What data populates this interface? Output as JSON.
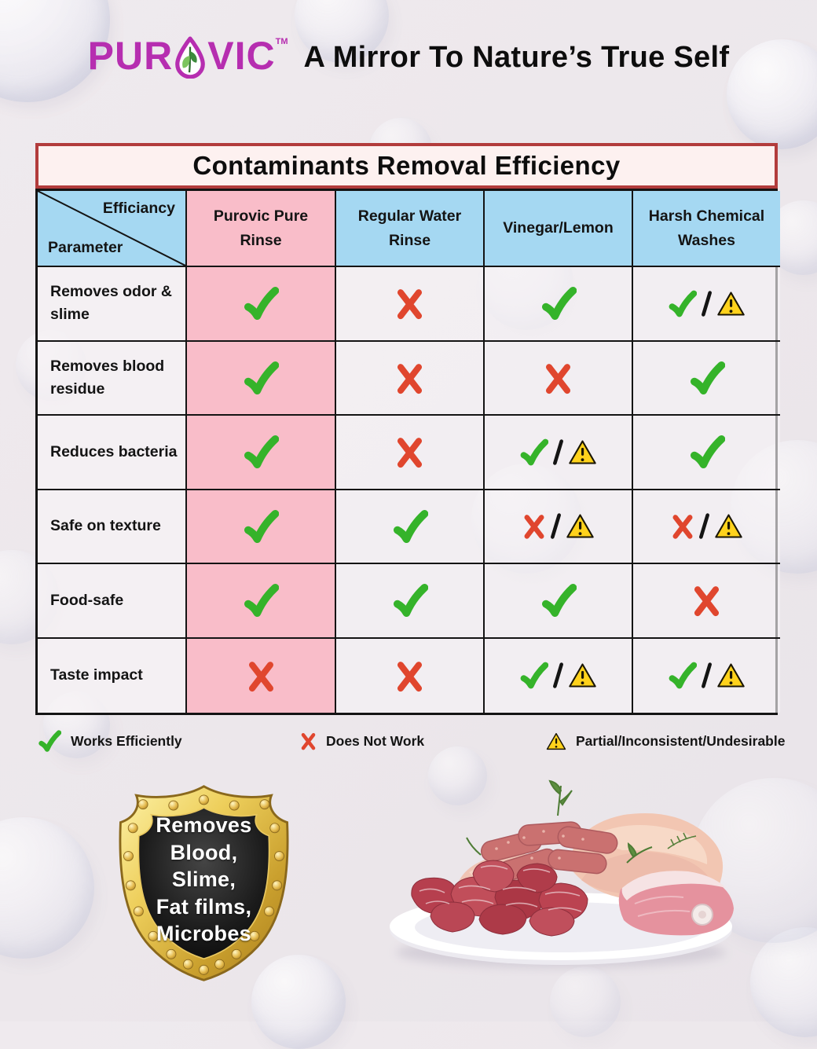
{
  "brand": {
    "logo_prefix": "PUR",
    "logo_suffix": "VIC",
    "trademark": "TM",
    "tagline": "A Mirror To Nature’s True Self"
  },
  "table": {
    "title": "Contaminants Removal Efficiency",
    "corner": {
      "top_label": "Efficiancy",
      "bottom_label": "Parameter"
    },
    "columns": [
      "Purovic Pure Rinse",
      "Regular Water Rinse",
      "Vinegar/Lemon",
      "Harsh Chemical Washes"
    ],
    "rows": [
      {
        "label": "Removes odor & slime",
        "cells": [
          "check",
          "cross",
          "check",
          "check_warn"
        ]
      },
      {
        "label": "Removes blood residue",
        "cells": [
          "check",
          "cross",
          "cross",
          "check"
        ]
      },
      {
        "label": "Reduces bacteria",
        "cells": [
          "check",
          "cross",
          "check_warn",
          "check"
        ]
      },
      {
        "label": "Safe on texture",
        "cells": [
          "check",
          "check",
          "cross_warn",
          "cross_warn"
        ]
      },
      {
        "label": "Food-safe",
        "cells": [
          "check",
          "check",
          "check",
          "cross"
        ]
      },
      {
        "label": "Taste impact",
        "cells": [
          "cross",
          "cross",
          "check_warn",
          "check_warn"
        ]
      }
    ]
  },
  "legend": [
    {
      "symbol": "check",
      "label": "Works Efficiently"
    },
    {
      "symbol": "cross",
      "label": "Does Not Work"
    },
    {
      "symbol": "warn",
      "label": "Partial/Inconsistent/Undesirable"
    }
  ],
  "badge": {
    "lines": [
      "Removes",
      "Blood,",
      "Slime,",
      "Fat films,",
      "Microbes"
    ]
  },
  "colors": {
    "brand_magenta": "#b62eb0",
    "header_blue": "#a5d8f2",
    "highlight_pink": "#f9bdc9",
    "title_border_red": "#b23c3c",
    "check_green": "#35b32a",
    "cross_red": "#e0462e",
    "warn_yellow": "#ffd21c"
  },
  "chart_data": {
    "type": "table",
    "title": "Contaminants Removal Efficiency",
    "column_header": "Efficiancy",
    "row_header": "Parameter",
    "columns": [
      "Purovic Pure Rinse",
      "Regular Water Rinse",
      "Vinegar/Lemon",
      "Harsh Chemical Washes"
    ],
    "value_key": {
      "check": "Works Efficiently",
      "cross": "Does Not Work",
      "check_warn": "Works Efficiently / Partial-Inconsistent-Undesirable",
      "cross_warn": "Does Not Work / Partial-Inconsistent-Undesirable"
    },
    "rows": [
      {
        "parameter": "Removes odor & slime",
        "values": [
          "check",
          "cross",
          "check",
          "check_warn"
        ]
      },
      {
        "parameter": "Removes blood residue",
        "values": [
          "check",
          "cross",
          "cross",
          "check"
        ]
      },
      {
        "parameter": "Reduces bacteria",
        "values": [
          "check",
          "cross",
          "check_warn",
          "check"
        ]
      },
      {
        "parameter": "Safe on texture",
        "values": [
          "check",
          "check",
          "cross_warn",
          "cross_warn"
        ]
      },
      {
        "parameter": "Food-safe",
        "values": [
          "check",
          "check",
          "check",
          "cross"
        ]
      },
      {
        "parameter": "Taste impact",
        "values": [
          "cross",
          "cross",
          "check_warn",
          "check_warn"
        ]
      }
    ]
  }
}
